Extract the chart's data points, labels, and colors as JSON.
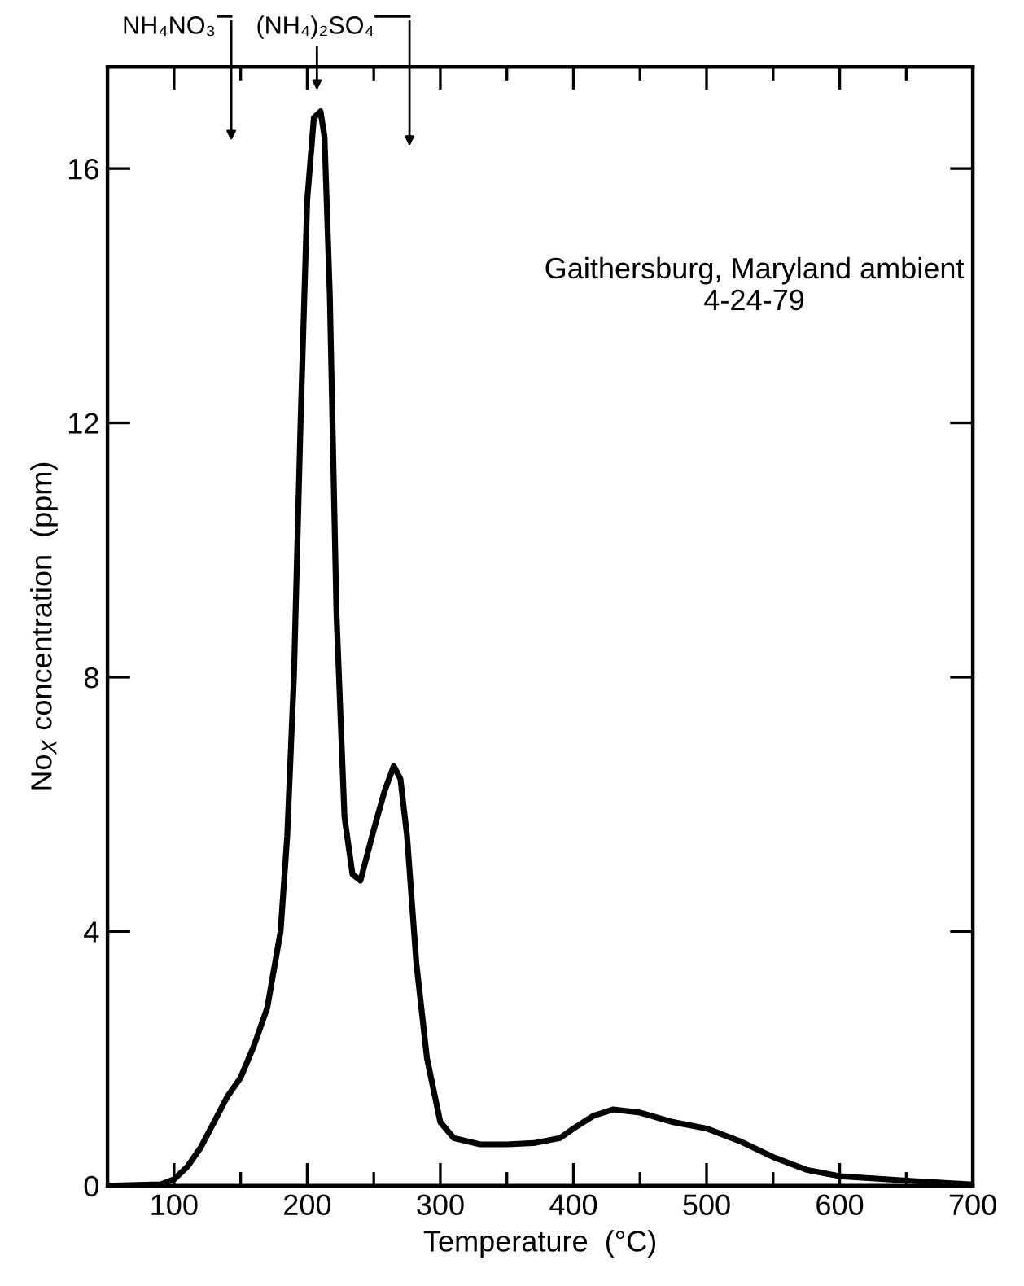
{
  "chart_data": {
    "type": "line",
    "xlabel": "Temperature  (°C)",
    "ylabel": "No$_{X}$ concentration  (ppm)",
    "x": [
      50,
      90,
      100,
      110,
      120,
      130,
      140,
      150,
      160,
      170,
      180,
      185,
      190,
      195,
      200,
      205,
      210,
      213,
      217,
      222,
      228,
      234,
      240,
      250,
      258,
      265,
      270,
      275,
      282,
      290,
      300,
      310,
      330,
      350,
      370,
      390,
      400,
      415,
      430,
      450,
      475,
      500,
      525,
      550,
      575,
      600,
      650,
      700
    ],
    "series": [
      {
        "color": "#000000",
        "values": [
          0,
          0.02,
          0.1,
          0.3,
          0.6,
          1.0,
          1.4,
          1.7,
          2.2,
          2.8,
          4.0,
          5.5,
          8,
          12,
          15.5,
          16.8,
          16.9,
          16.5,
          14,
          9,
          5.8,
          4.9,
          4.8,
          5.6,
          6.2,
          6.6,
          6.4,
          5.5,
          3.5,
          2.0,
          1.0,
          0.75,
          0.65,
          0.65,
          0.67,
          0.75,
          0.9,
          1.1,
          1.2,
          1.15,
          1.0,
          0.9,
          0.7,
          0.45,
          0.25,
          0.15,
          0.08,
          0.02
        ]
      }
    ],
    "xlim": [
      50,
      700
    ],
    "ylim": [
      0,
      17.6
    ],
    "xticks": [
      100,
      {
        "value": 150,
        "label": null
      },
      200,
      {
        "value": 250,
        "label": null
      },
      300,
      {
        "value": 350,
        "label": null
      },
      400,
      {
        "value": 450,
        "label": null
      },
      500,
      {
        "value": 550,
        "label": null
      },
      600,
      {
        "value": 650,
        "label": null
      },
      700
    ],
    "yticks": [
      0,
      4,
      8,
      12,
      16
    ],
    "grid": false,
    "legend": false,
    "marker": "none",
    "line_style": "solid",
    "annotations": [
      "Gaithersburg, Maryland ambient\n4-24-79",
      "NH₄NO₃",
      "(NH₄)₂SO₄"
    ]
  }
}
